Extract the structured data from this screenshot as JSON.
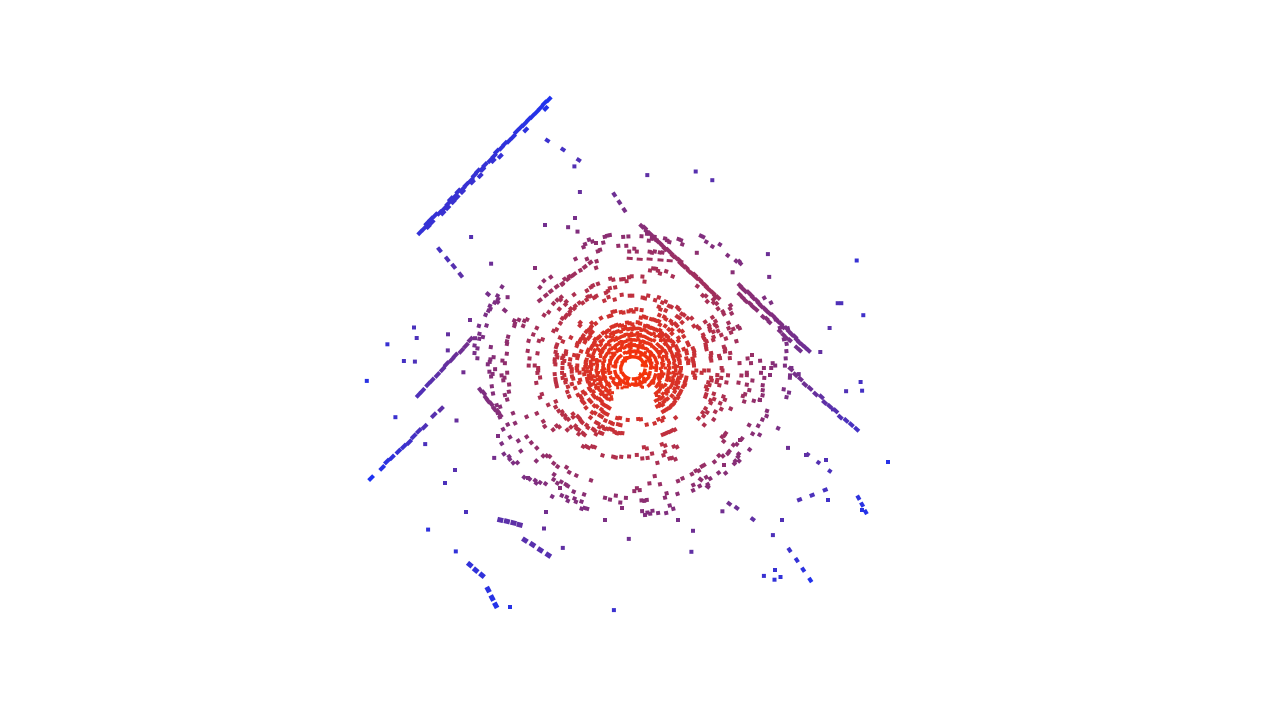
{
  "viewer": {
    "background_color": "#ffffff",
    "color_near": "#ff3300",
    "color_mid": "#8a2e73",
    "color_far": "#1133ff",
    "sensor_marker_color": "#ffffff"
  }
}
